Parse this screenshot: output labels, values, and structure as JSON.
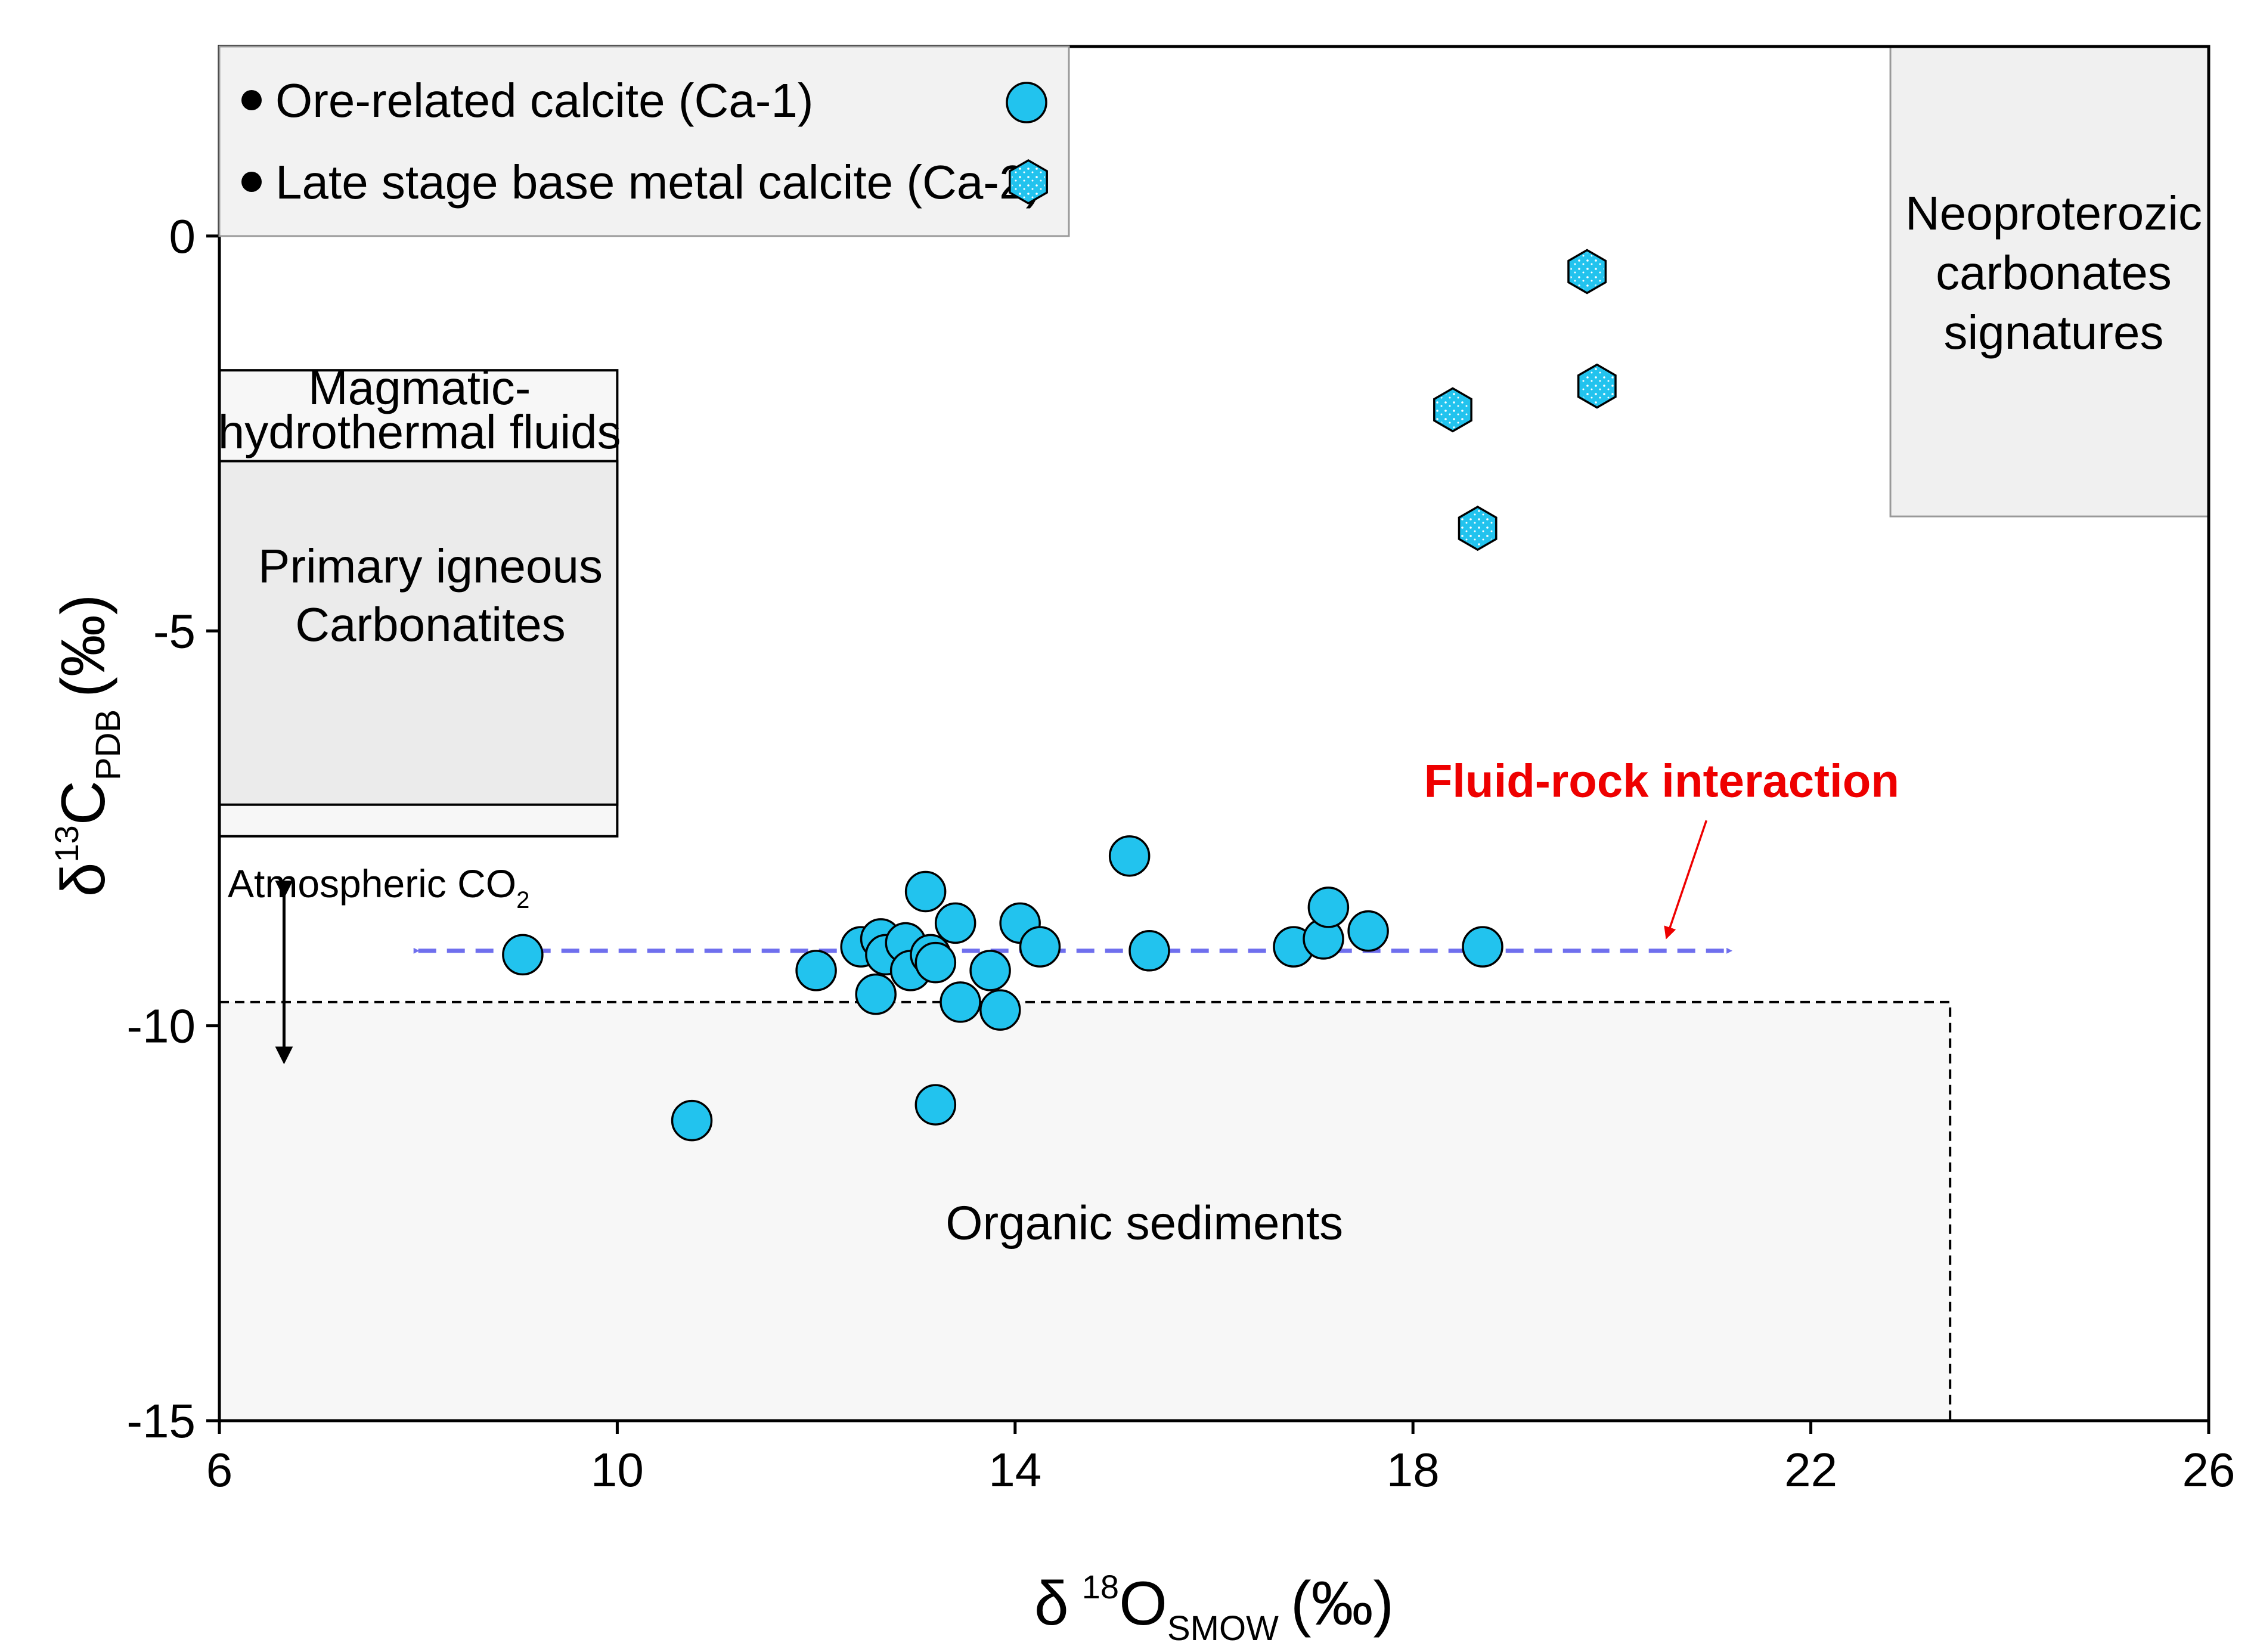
{
  "chart_data": {
    "type": "scatter",
    "title": "",
    "xlabel": {
      "delta": "δ",
      "sup": "18",
      "main": "O",
      "sub": "SMOW",
      "unit": "(‰)"
    },
    "ylabel": {
      "delta": "δ",
      "sup": "13",
      "main": "C",
      "sub": "PDB",
      "unit": "(‰)"
    },
    "xlim": [
      6,
      26
    ],
    "ylim": [
      -15,
      2.4
    ],
    "xticks": [
      6,
      10,
      14,
      18,
      22,
      26
    ],
    "yticks": [
      0,
      -5,
      -10,
      -15
    ],
    "colors": {
      "marker": "#22c3ee",
      "arrow": "#6f6fee",
      "annotation": "#ee0000",
      "box": "#f0f0f0"
    },
    "legend": {
      "items": [
        {
          "label": "Ore-related calcite (Ca-1)",
          "marker": "circle"
        },
        {
          "label": "Late stage base metal calcite (Ca-2)",
          "marker": "hexagon"
        }
      ]
    },
    "series": [
      {
        "name": "Ore-related calcite (Ca-1)",
        "marker": "circle",
        "points": [
          [
            9.05,
            -9.1
          ],
          [
            10.75,
            -11.2
          ],
          [
            12.0,
            -9.3
          ],
          [
            12.45,
            -9.0
          ],
          [
            12.6,
            -9.6
          ],
          [
            12.65,
            -8.9
          ],
          [
            12.7,
            -9.1
          ],
          [
            12.9,
            -8.95
          ],
          [
            12.95,
            -9.3
          ],
          [
            13.1,
            -8.3
          ],
          [
            13.15,
            -9.1
          ],
          [
            13.2,
            -9.2
          ],
          [
            13.2,
            -11.0
          ],
          [
            13.4,
            -8.7
          ],
          [
            13.45,
            -9.7
          ],
          [
            13.75,
            -9.3
          ],
          [
            13.85,
            -9.8
          ],
          [
            14.05,
            -8.7
          ],
          [
            14.25,
            -9.0
          ],
          [
            15.15,
            -7.85
          ],
          [
            15.35,
            -9.05
          ],
          [
            16.8,
            -9.0
          ],
          [
            17.1,
            -8.9
          ],
          [
            17.15,
            -8.5
          ],
          [
            17.55,
            -8.8
          ],
          [
            18.7,
            -9.0
          ]
        ]
      },
      {
        "name": "Late stage base metal calcite (Ca-2)",
        "marker": "hexagon",
        "points": [
          [
            19.75,
            -0.45
          ],
          [
            19.85,
            -1.9
          ],
          [
            18.4,
            -2.2
          ],
          [
            18.65,
            -3.7
          ]
        ]
      }
    ],
    "regions": {
      "magmatic": {
        "label_lines": [
          "Magmatic-",
          "hydrothermal fluids"
        ],
        "y_range": [
          -7.6,
          -1.7
        ]
      },
      "igneous": {
        "label_lines": [
          "Primary igneous",
          "Carbonatites"
        ],
        "y_range": [
          -7.2,
          -2.85
        ]
      },
      "neoproterozoic": {
        "label_lines": [
          "Neoproterozic",
          "carbonates",
          "signatures"
        ],
        "x_range": [
          22.8,
          26
        ],
        "y_range": [
          -3.55,
          2.4
        ]
      },
      "organic": {
        "label": "Organic sediments",
        "x_max": 23.4,
        "y_max": -9.7
      }
    },
    "annotations": {
      "fluid_rock": "Fluid-rock interaction",
      "atmospheric": {
        "main": "Atmospheric CO",
        "sub": "2"
      }
    }
  }
}
